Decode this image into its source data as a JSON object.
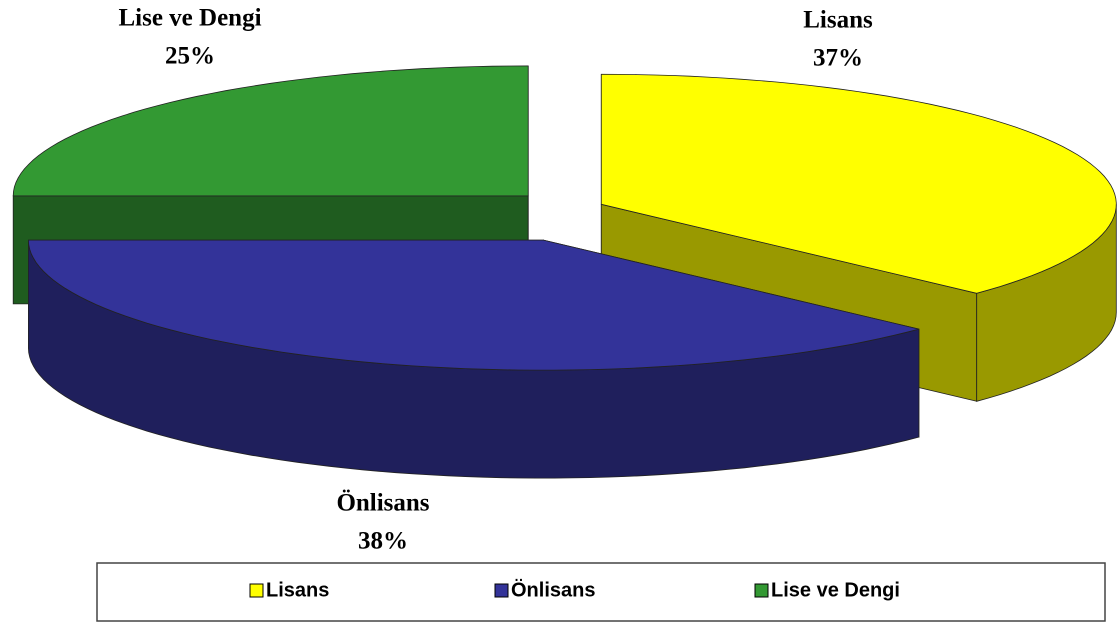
{
  "chart_data": {
    "type": "pie3d",
    "categories": [
      "Lisans",
      "Önlisans",
      "Lise ve Dengi"
    ],
    "values": [
      37,
      38,
      25
    ],
    "value_labels": [
      "37%",
      "38%",
      "25%"
    ],
    "colors": [
      "#ffff00",
      "#333399",
      "#339933"
    ],
    "legend": "bottom"
  }
}
